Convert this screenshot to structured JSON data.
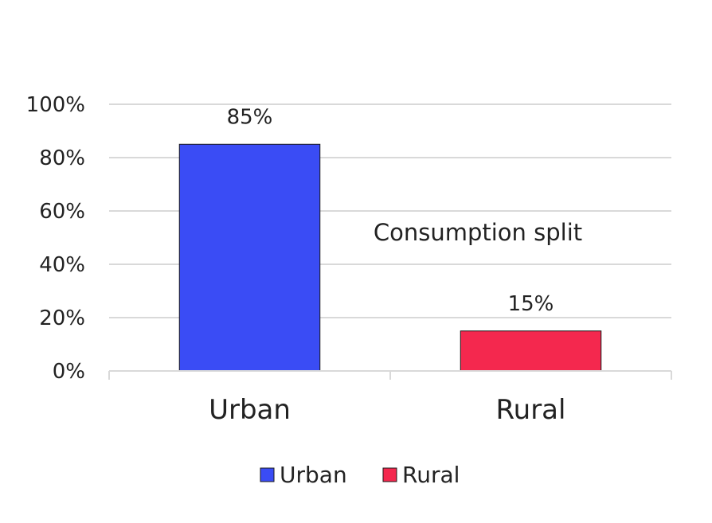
{
  "chart_data": {
    "type": "bar",
    "categories": [
      "Urban",
      "Rural"
    ],
    "values": [
      85,
      15
    ],
    "value_labels": [
      "85%",
      "15%"
    ],
    "colors": [
      "#3a4cf5",
      "#f4284e"
    ],
    "ylim": [
      0,
      100
    ],
    "yticks": [
      0,
      20,
      40,
      60,
      80,
      100
    ],
    "ytick_labels": [
      "0%",
      "20%",
      "40%",
      "60%",
      "80%",
      "100%"
    ],
    "annotation": "Consumption split",
    "legend": [
      "Urban",
      "Rural"
    ],
    "legend_position": "bottom",
    "grid": true,
    "title": "",
    "xlabel": "",
    "ylabel": ""
  }
}
